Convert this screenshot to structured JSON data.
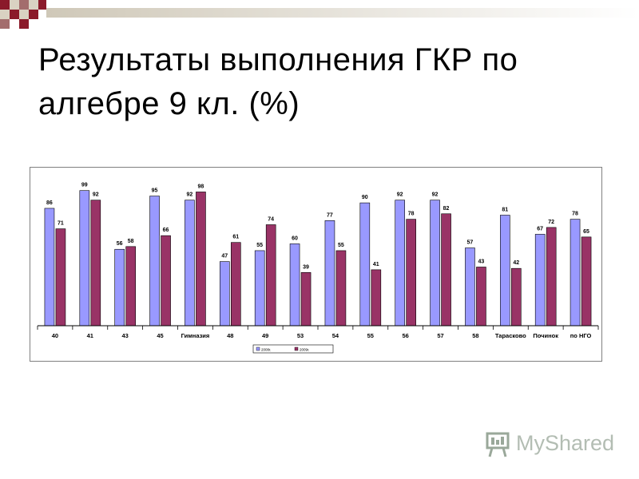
{
  "title": "Результаты выполнения ГКР по\nалгебре 9 кл. (%)",
  "watermark": {
    "text": "MyShared",
    "icon": "presentation-board-icon"
  },
  "colors": {
    "series_2008": "#9999ff",
    "series_2009": "#993366",
    "deco_dark": "#8b1a2a",
    "deco_light": "#d9d2c2",
    "deco_mid": "#a36d6d",
    "axis": "#000000"
  },
  "chart_data": {
    "type": "bar",
    "title": "",
    "xlabel": "",
    "ylabel": "",
    "ylim": [
      0,
      100
    ],
    "grid": false,
    "legend_position": "bottom",
    "categories": [
      "40",
      "41",
      "43",
      "45",
      "Гимназия",
      "48",
      "49",
      "53",
      "54",
      "55",
      "56",
      "57",
      "58",
      "Тарасково",
      "Починок",
      "по НГО"
    ],
    "series": [
      {
        "name": "2008г.",
        "color": "#9999ff",
        "values": [
          86,
          99,
          56,
          95,
          92,
          47,
          55,
          60,
          77,
          90,
          92,
          92,
          57,
          81,
          67,
          78
        ]
      },
      {
        "name": "2009г.",
        "color": "#993366",
        "values": [
          71,
          92,
          58,
          66,
          98,
          61,
          74,
          39,
          55,
          41,
          78,
          82,
          43,
          42,
          72,
          65
        ]
      }
    ]
  }
}
